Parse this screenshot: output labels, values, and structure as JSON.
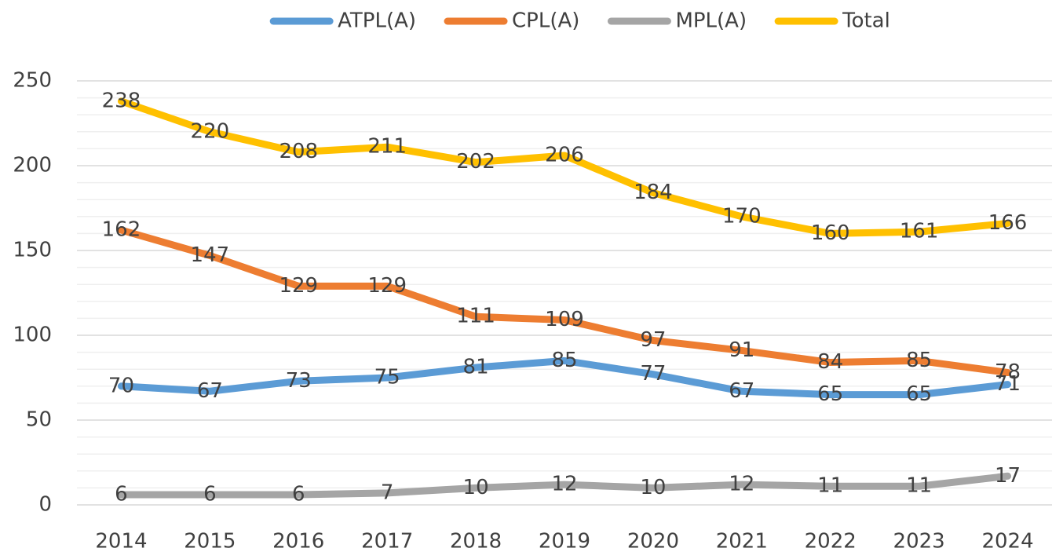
{
  "chart_data": {
    "type": "line",
    "categories": [
      "2014",
      "2015",
      "2016",
      "2017",
      "2018",
      "2019",
      "2020",
      "2021",
      "2022",
      "2023",
      "2024"
    ],
    "series": [
      {
        "name": "ATPL(A)",
        "color": "#5b9bd5",
        "values": [
          70,
          67,
          73,
          75,
          81,
          85,
          77,
          67,
          65,
          65,
          71
        ]
      },
      {
        "name": "CPL(A)",
        "color": "#ed7d31",
        "values": [
          162,
          147,
          129,
          129,
          111,
          109,
          97,
          91,
          84,
          85,
          78
        ]
      },
      {
        "name": "MPL(A)",
        "color": "#a5a5a5",
        "values": [
          6,
          6,
          6,
          7,
          10,
          12,
          10,
          12,
          11,
          11,
          17
        ]
      },
      {
        "name": "Total",
        "color": "#ffc000",
        "values": [
          238,
          220,
          208,
          211,
          202,
          206,
          184,
          170,
          160,
          161,
          166
        ]
      }
    ],
    "ylim": [
      0,
      250
    ],
    "yticks": [
      0,
      50,
      100,
      150,
      200,
      250
    ],
    "yticks_minor": [
      10,
      20,
      30,
      40,
      60,
      70,
      80,
      90,
      110,
      120,
      130,
      140,
      160,
      170,
      180,
      190,
      210,
      220,
      230,
      240
    ],
    "grid": true,
    "legend": "top",
    "data_labels": true
  }
}
